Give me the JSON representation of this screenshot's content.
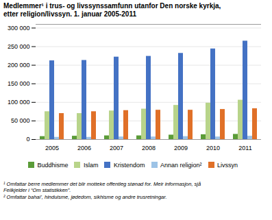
{
  "chart_data": {
    "type": "bar",
    "title": "Medlemmer¹ i trus- og livssynssamfunn utanfor Den norske kyrkja,",
    "subtitle": "etter religion/livssyn. 1. januar 2005-2011",
    "categories": [
      "2005",
      "2006",
      "2007",
      "2008",
      "2009",
      "2010",
      "2011"
    ],
    "series": [
      {
        "name": "Buddhisme",
        "color": "#5b9c38",
        "values": [
          8000,
          9000,
          10000,
          10000,
          12000,
          13000,
          14000
        ]
      },
      {
        "name": "Islam",
        "color": "#b8d48a",
        "values": [
          75000,
          70000,
          77000,
          82000,
          92000,
          98000,
          106000
        ]
      },
      {
        "name": "Kristendom",
        "color": "#4472c4",
        "values": [
          212000,
          213000,
          222000,
          224000,
          232000,
          244000,
          265000
        ]
      },
      {
        "name": "Annan religion²",
        "color": "#9dc3e6",
        "values": [
          6000,
          6000,
          7000,
          7000,
          8000,
          7000,
          9000
        ]
      },
      {
        "name": "Livssyn",
        "color": "#e07028",
        "values": [
          70000,
          75000,
          78000,
          79000,
          79000,
          81000,
          83000
        ]
      }
    ],
    "ylim": [
      0,
      310000
    ],
    "yticks": [
      0,
      {
        "value": 50000,
        "label": "50 000"
      },
      {
        "value": 100000,
        "label": "100 000"
      },
      {
        "value": 150000,
        "label": "150 000"
      },
      {
        "value": 200000,
        "label": "200 000"
      },
      {
        "value": 250000,
        "label": "250 000"
      },
      {
        "value": 300000,
        "label": "300 000"
      }
    ],
    "grid": true,
    "legend": "bottom",
    "annotations": [
      "¹ Omfattar berre medlemmer det blir motteke offentleg stønad for. Meir informasjon, sjå",
      "Feilkjelder i “Om statistikken”.",
      "² Omfattar bahai’, hinduisme, jødedom, sikhisme og andre trusretningar."
    ]
  }
}
